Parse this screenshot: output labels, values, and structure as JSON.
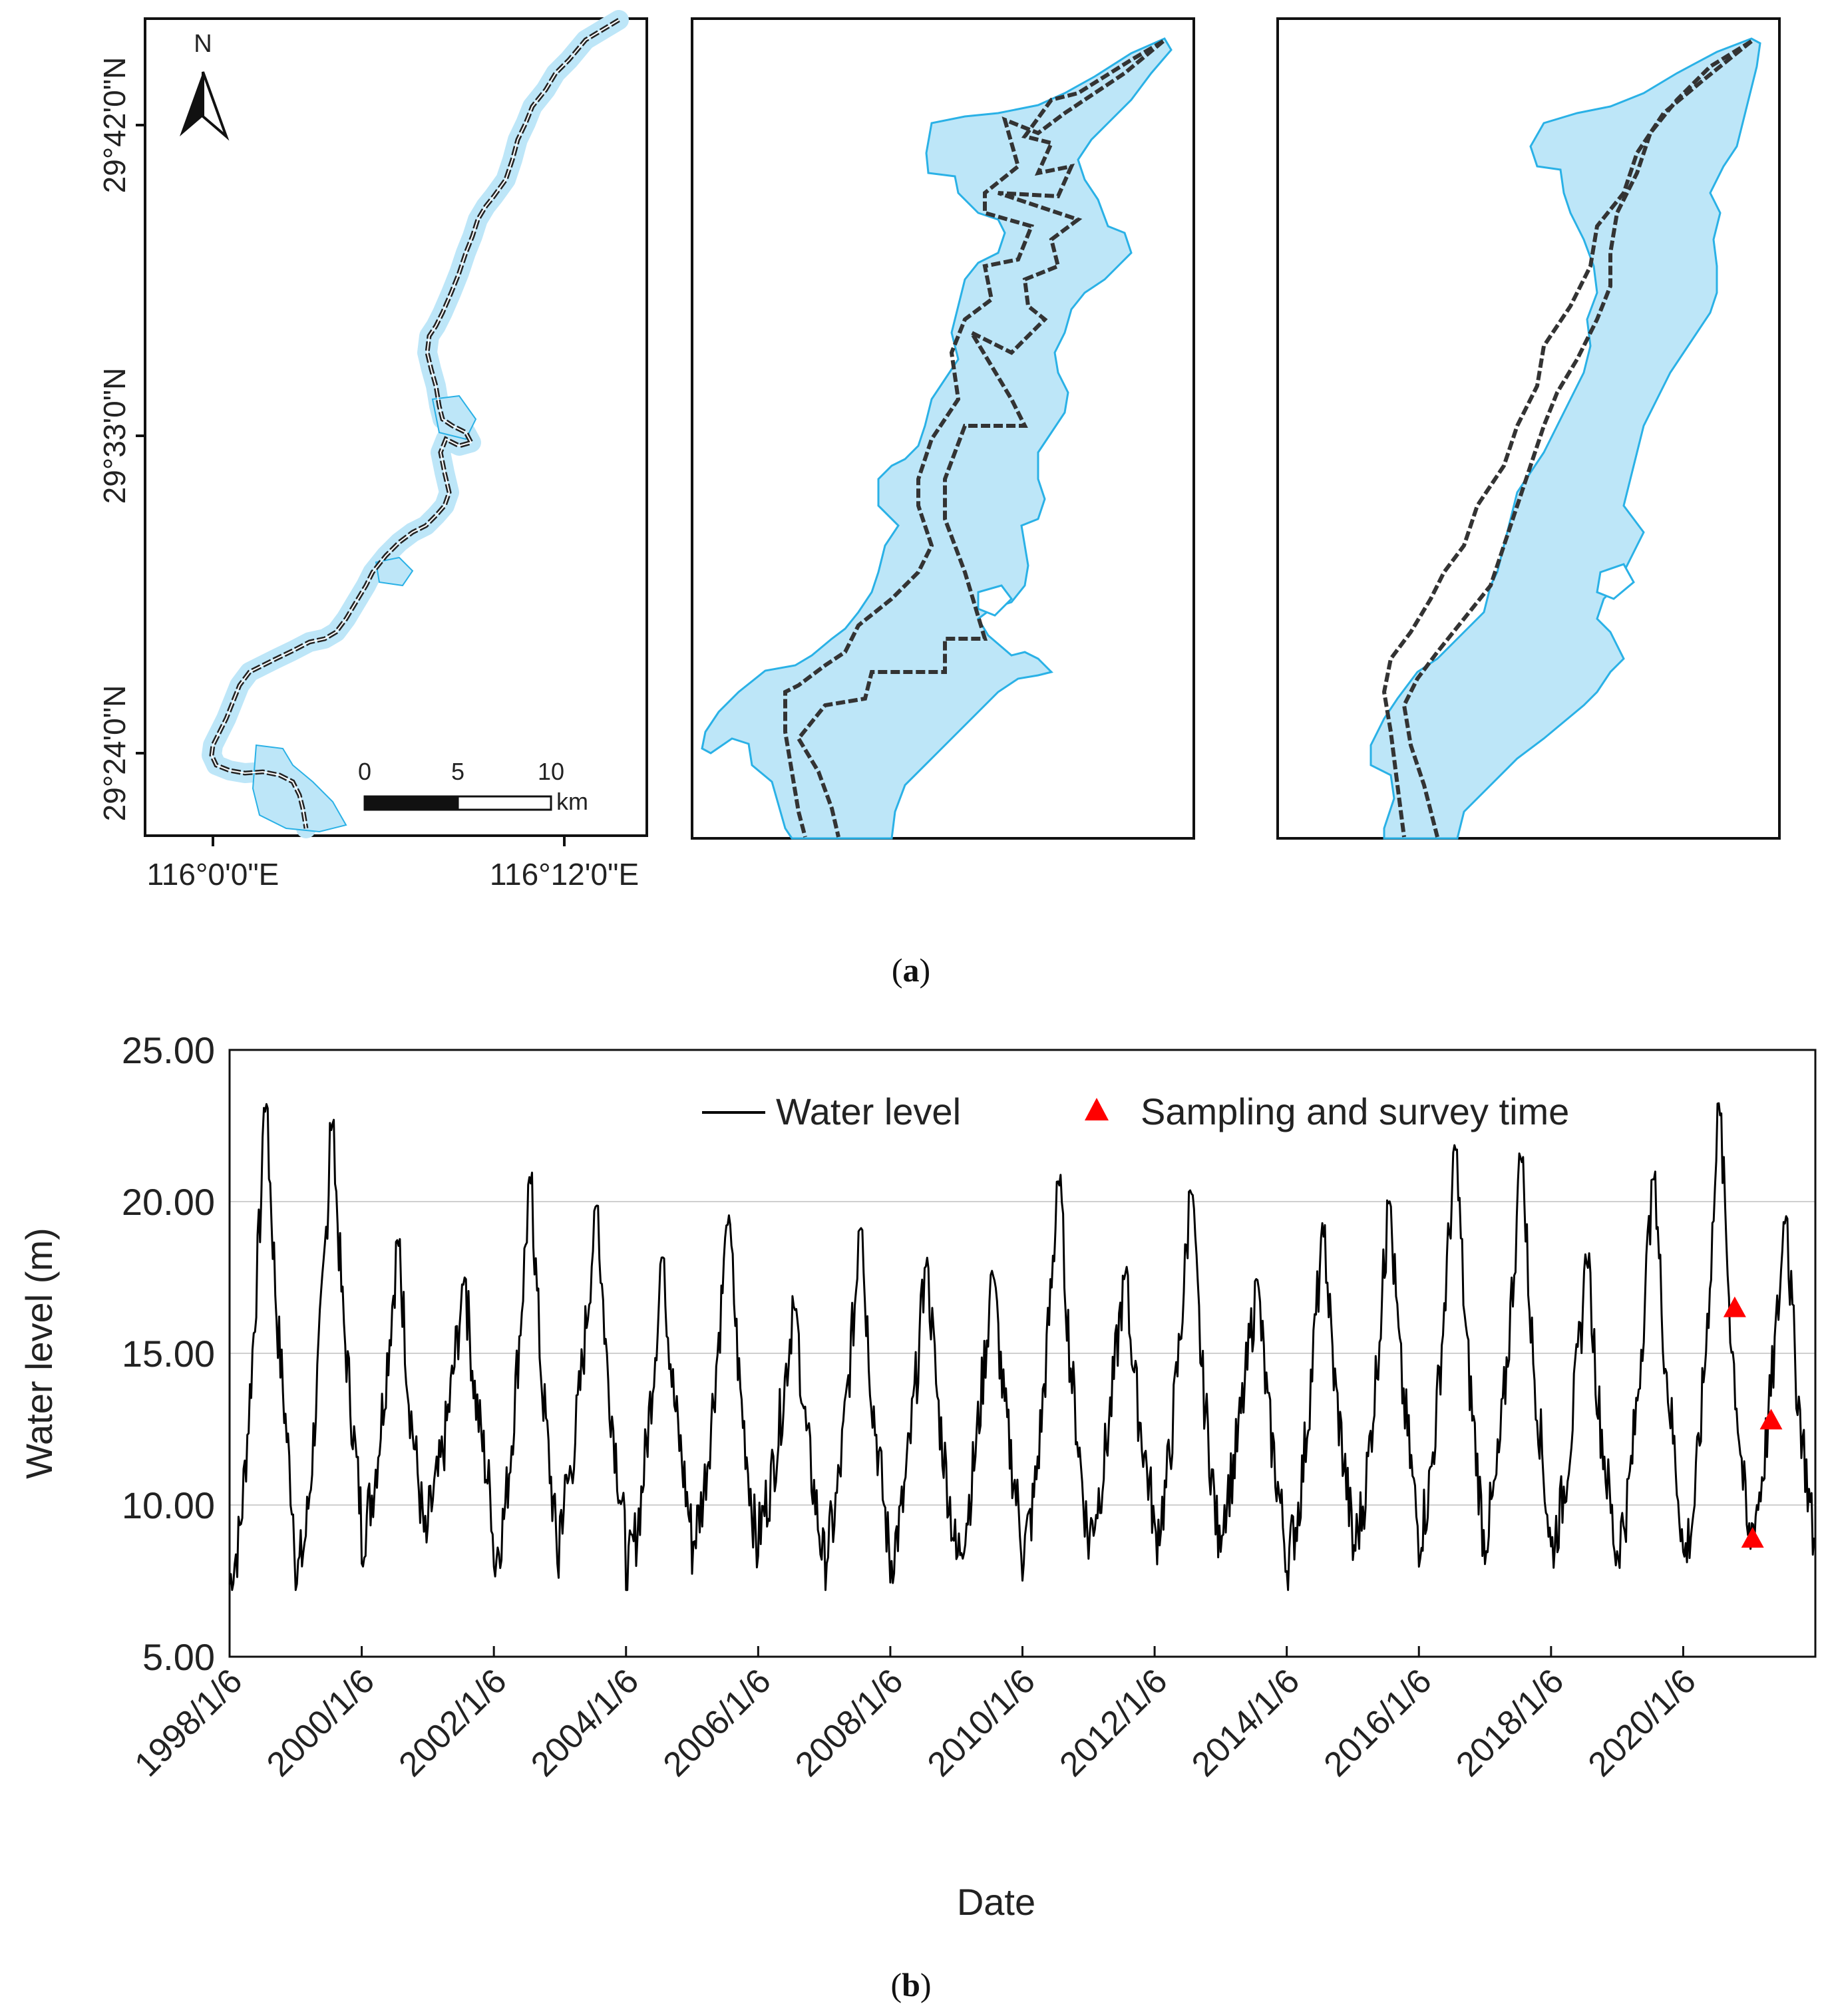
{
  "figure_a": {
    "caption_open": "(",
    "caption_letter": "a",
    "caption_close": ")",
    "lat_labels": [
      "29°42'0\"N",
      "29°33'0\"N",
      "29°24'0\"N"
    ],
    "lon_labels": [
      "116°0'0\"E",
      "116°12'0\"E"
    ],
    "north_label": "N",
    "scale_ticks": [
      "0",
      "5",
      "10"
    ],
    "scale_unit": "km",
    "water_color": "#bde6f8",
    "water_edge_color": "#2ab1e6"
  },
  "chart_data": {
    "type": "line",
    "title": "",
    "xlabel": "Date",
    "ylabel": "Water level (m)",
    "ylim": [
      5,
      25
    ],
    "yticks": [
      "5.00",
      "10.00",
      "15.00",
      "20.00",
      "25.00"
    ],
    "xlim_year": [
      1998.0,
      2022.0
    ],
    "xticks": [
      "1998/1/6",
      "2000/1/6",
      "2002/1/6",
      "2004/1/6",
      "2006/1/6",
      "2008/1/6",
      "2010/1/6",
      "2012/1/6",
      "2014/1/6",
      "2016/1/6",
      "2018/1/6",
      "2020/1/6"
    ],
    "grid": "horizontal",
    "legend_position": "top-right",
    "series": [
      {
        "name": "Water level",
        "color": "#000000",
        "style": "line",
        "annual_cycle": [
          {
            "year": 1998,
            "peak": 23.3,
            "trough": 7.4
          },
          {
            "year": 1999,
            "peak": 22.7,
            "trough": 8.8
          },
          {
            "year": 2000,
            "peak": 18.9,
            "trough": 9.4
          },
          {
            "year": 2001,
            "peak": 17.6,
            "trough": 8.0
          },
          {
            "year": 2002,
            "peak": 21.0,
            "trough": 9.5
          },
          {
            "year": 2003,
            "peak": 20.1,
            "trough": 7.5
          },
          {
            "year": 2004,
            "peak": 18.2,
            "trough": 8.6
          },
          {
            "year": 2005,
            "peak": 19.7,
            "trough": 8.9
          },
          {
            "year": 2006,
            "peak": 16.9,
            "trough": 8.1
          },
          {
            "year": 2007,
            "peak": 19.2,
            "trough": 8.0
          },
          {
            "year": 2008,
            "peak": 18.2,
            "trough": 8.1
          },
          {
            "year": 2009,
            "peak": 17.8,
            "trough": 8.3
          },
          {
            "year": 2010,
            "peak": 20.9,
            "trough": 8.8
          },
          {
            "year": 2011,
            "peak": 17.9,
            "trough": 8.7
          },
          {
            "year": 2012,
            "peak": 20.5,
            "trough": 9.4
          },
          {
            "year": 2013,
            "peak": 17.5,
            "trough": 8.0
          },
          {
            "year": 2014,
            "peak": 19.3,
            "trough": 8.4
          },
          {
            "year": 2015,
            "peak": 20.1,
            "trough": 8.9
          },
          {
            "year": 2016,
            "peak": 22.1,
            "trough": 8.9
          },
          {
            "year": 2017,
            "peak": 21.6,
            "trough": 8.4
          },
          {
            "year": 2018,
            "peak": 18.3,
            "trough": 8.5
          },
          {
            "year": 2019,
            "peak": 21.2,
            "trough": 8.1
          },
          {
            "year": 2020,
            "peak": 23.3,
            "trough": 8.8
          },
          {
            "year": 2021,
            "peak": 19.6,
            "trough": 8.3
          }
        ]
      },
      {
        "name": "Sampling and survey time",
        "color": "#ff0000",
        "style": "triangle-marker",
        "points": [
          {
            "x_year": 2020.78,
            "y": 16.5
          },
          {
            "x_year": 2021.05,
            "y": 8.9
          },
          {
            "x_year": 2021.33,
            "y": 12.8
          }
        ]
      }
    ]
  },
  "figure_b": {
    "caption_open": "(",
    "caption_letter": "b",
    "caption_close": ")"
  }
}
